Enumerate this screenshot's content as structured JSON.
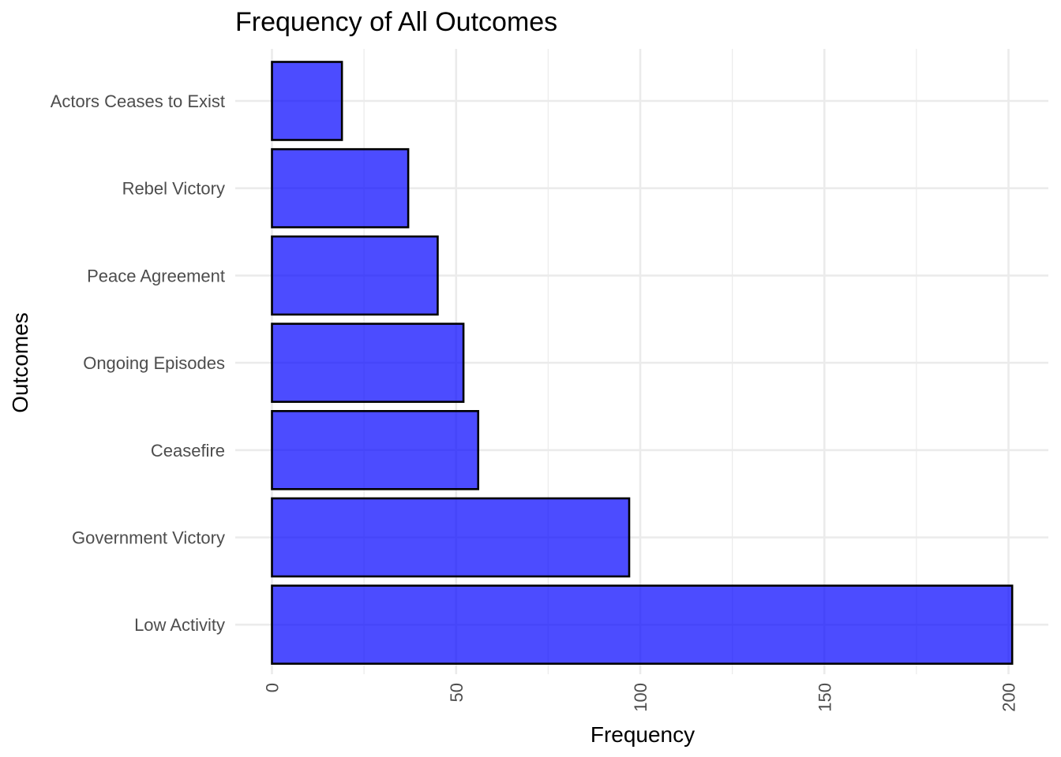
{
  "chart_data": {
    "type": "bar",
    "orientation": "horizontal",
    "title": "Frequency of All Outcomes",
    "xlabel": "Frequency",
    "ylabel": "Outcomes",
    "categories": [
      "Actors Ceases to Exist",
      "Rebel Victory",
      "Peace Agreement",
      "Ongoing Episodes",
      "Ceasefire",
      "Government Victory",
      "Low Activity"
    ],
    "values": [
      19,
      37,
      45,
      52,
      56,
      97,
      201
    ],
    "xlim": [
      0,
      201
    ],
    "x_ticks": [
      "0",
      "50",
      "100",
      "150",
      "200"
    ],
    "x_tick_values": [
      0,
      50,
      100,
      150,
      200
    ],
    "x_minor_tick_values": [
      25,
      75,
      125,
      175
    ],
    "grid": true,
    "legend": "none",
    "bar_color": "#0000ff",
    "bar_opacity": 0.7,
    "bar_edge_color": "#000000",
    "grid_color": "#ebebeb"
  }
}
